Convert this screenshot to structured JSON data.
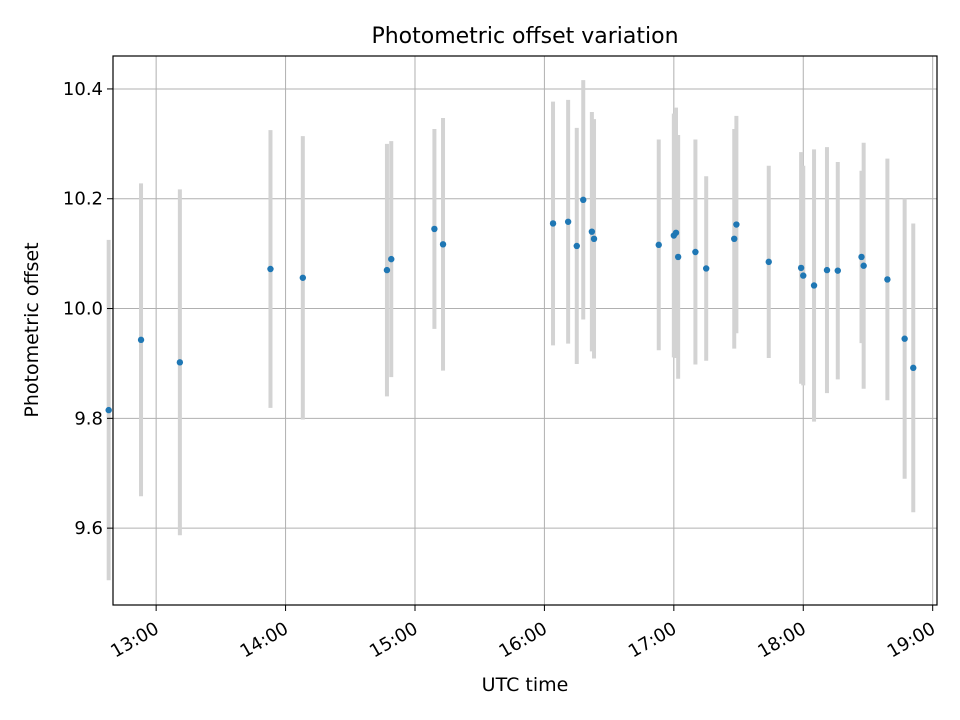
{
  "chart_data": {
    "type": "scatter",
    "title": "Photometric offset variation",
    "xlabel": "UTC time",
    "ylabel": "Photometric offset",
    "x_unit": "hours UTC",
    "xlim": [
      "12:40",
      "19:02"
    ],
    "ylim": [
      9.46,
      10.46
    ],
    "x_ticks": [
      "13:00",
      "14:00",
      "15:00",
      "16:00",
      "17:00",
      "18:00",
      "19:00"
    ],
    "y_ticks": [
      "9.6",
      "9.8",
      "10.0",
      "10.2",
      "10.4"
    ],
    "grid": true,
    "point_color": "#1f77b4",
    "errorbar_color": "#d3d3d3",
    "series": [
      {
        "points": [
          {
            "x": "12:38",
            "y": 9.815,
            "err": 0.31
          },
          {
            "x": "12:53",
            "y": 9.943,
            "err": 0.285
          },
          {
            "x": "13:11",
            "y": 9.902,
            "err": 0.315
          },
          {
            "x": "13:53",
            "y": 10.072,
            "err": 0.253
          },
          {
            "x": "14:08",
            "y": 10.056,
            "err": 0.258
          },
          {
            "x": "14:47",
            "y": 10.07,
            "err": 0.23
          },
          {
            "x": "14:49",
            "y": 10.09,
            "err": 0.215
          },
          {
            "x": "15:09",
            "y": 10.145,
            "err": 0.182
          },
          {
            "x": "15:13",
            "y": 10.117,
            "err": 0.23
          },
          {
            "x": "16:04",
            "y": 10.155,
            "err": 0.222
          },
          {
            "x": "16:11",
            "y": 10.158,
            "err": 0.222
          },
          {
            "x": "16:15",
            "y": 10.114,
            "err": 0.215
          },
          {
            "x": "16:18",
            "y": 10.198,
            "err": 0.218
          },
          {
            "x": "16:22",
            "y": 10.14,
            "err": 0.218
          },
          {
            "x": "16:23",
            "y": 10.127,
            "err": 0.218
          },
          {
            "x": "16:53",
            "y": 10.116,
            "err": 0.192
          },
          {
            "x": "17:00",
            "y": 10.133,
            "err": 0.222
          },
          {
            "x": "17:01",
            "y": 10.138,
            "err": 0.228
          },
          {
            "x": "17:02",
            "y": 10.094,
            "err": 0.222
          },
          {
            "x": "17:10",
            "y": 10.103,
            "err": 0.205
          },
          {
            "x": "17:15",
            "y": 10.073,
            "err": 0.168
          },
          {
            "x": "17:28",
            "y": 10.127,
            "err": 0.2
          },
          {
            "x": "17:29",
            "y": 10.153,
            "err": 0.198
          },
          {
            "x": "17:44",
            "y": 10.085,
            "err": 0.175
          },
          {
            "x": "17:59",
            "y": 10.074,
            "err": 0.211
          },
          {
            "x": "18:00",
            "y": 10.06,
            "err": 0.2
          },
          {
            "x": "18:05",
            "y": 10.042,
            "err": 0.248
          },
          {
            "x": "18:11",
            "y": 10.07,
            "err": 0.224
          },
          {
            "x": "18:16",
            "y": 10.069,
            "err": 0.198
          },
          {
            "x": "18:27",
            "y": 10.094,
            "err": 0.157
          },
          {
            "x": "18:28",
            "y": 10.078,
            "err": 0.224
          },
          {
            "x": "18:39",
            "y": 10.053,
            "err": 0.22
          },
          {
            "x": "18:47",
            "y": 9.945,
            "err": 0.255
          },
          {
            "x": "18:51",
            "y": 9.892,
            "err": 0.263
          }
        ]
      }
    ]
  }
}
